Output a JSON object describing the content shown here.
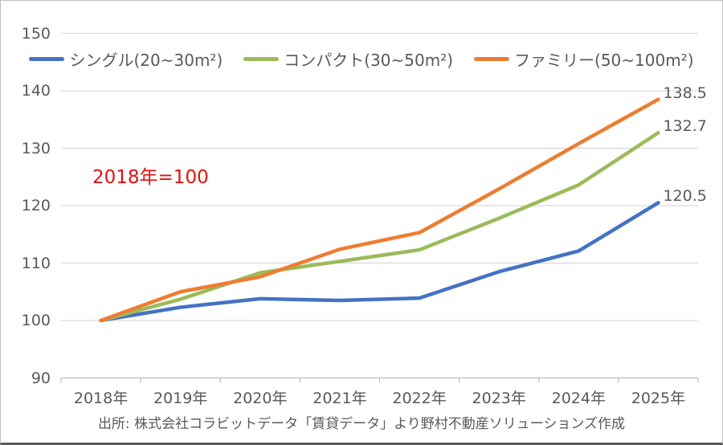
{
  "chart_data": {
    "type": "line",
    "title": "",
    "categories": [
      "2018年",
      "2019年",
      "2020年",
      "2021年",
      "2022年",
      "2023年",
      "2024年",
      "2025年"
    ],
    "series": [
      {
        "id": "single",
        "name": "シングル(20~30m²)",
        "color": "#4472C4",
        "values": [
          100,
          102.3,
          103.8,
          103.5,
          103.9,
          108.5,
          112.1,
          120.5
        ],
        "end_label": "120.5"
      },
      {
        "id": "compact",
        "name": "コンパクト(30~50m²)",
        "color": "#9BBB59",
        "values": [
          100,
          103.7,
          108.3,
          110.3,
          112.3,
          117.8,
          123.6,
          132.7
        ],
        "end_label": "132.7"
      },
      {
        "id": "family",
        "name": "ファミリー(50~100m²)",
        "color": "#ED7D31",
        "values": [
          100,
          105.0,
          107.6,
          112.4,
          115.3,
          122.9,
          130.8,
          138.5
        ],
        "end_label": "138.5"
      }
    ],
    "ylim": [
      90,
      150
    ],
    "yticks": [
      90,
      100,
      110,
      120,
      130,
      140,
      150
    ],
    "grid": true,
    "legend_position": "top",
    "annotation": "2018年=100",
    "annotation_color": "#E01111",
    "xlabel": "",
    "ylabel": "",
    "source": "出所: 株式会社コラビットデータ「賃貸データ」より野村不動産ソリューションズ作成"
  },
  "style_colors": {
    "gridline": "#D9D9D9",
    "axis_line": "#BFBFBF",
    "axis_text": "#595959"
  }
}
